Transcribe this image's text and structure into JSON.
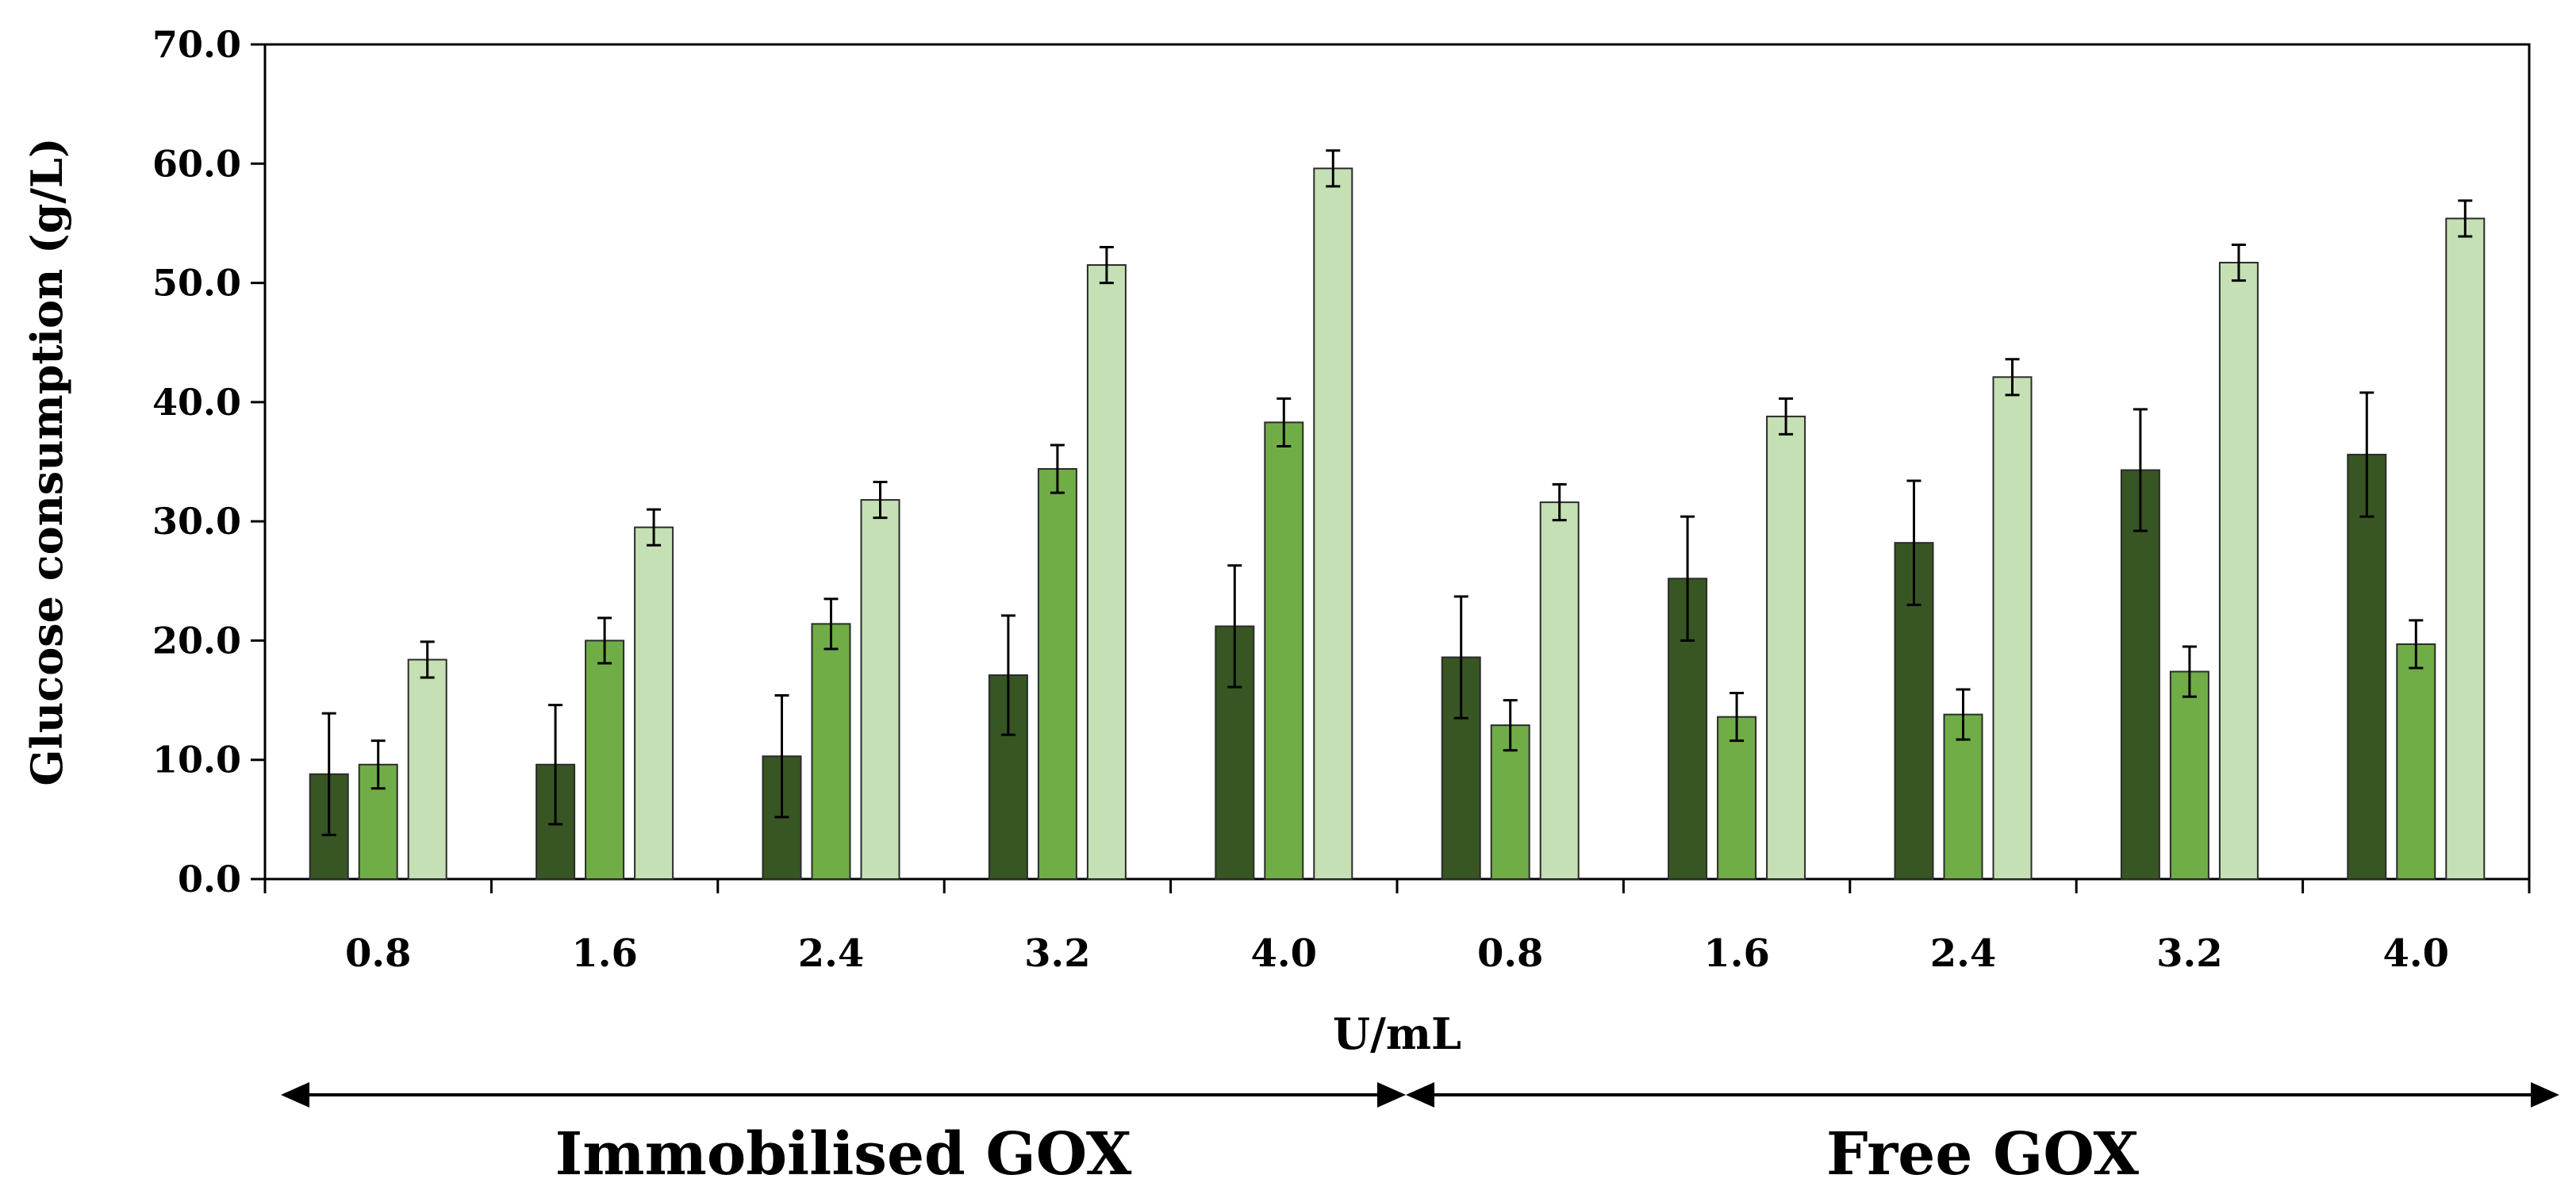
{
  "chart_data": {
    "type": "bar",
    "title": "",
    "xlabel": "U/mL",
    "ylabel": "Glucose consumption (g/L)",
    "ylim": [
      0,
      70
    ],
    "yticks": [
      0,
      10,
      20,
      30,
      40,
      50,
      60,
      70
    ],
    "ytick_labels": [
      "0.0",
      "10.0",
      "20.0",
      "30.0",
      "40.0",
      "50.0",
      "60.0",
      "70.0"
    ],
    "grid": false,
    "legend": "none",
    "categories": [
      "0.8",
      "1.6",
      "2.4",
      "3.2",
      "4.0",
      "0.8",
      "1.6",
      "2.4",
      "3.2",
      "4.0"
    ],
    "groups": [
      {
        "label": "Immobilised GOX",
        "categories": [
          "0.8",
          "1.6",
          "2.4",
          "3.2",
          "4.0"
        ]
      },
      {
        "label": "Free GOX",
        "categories": [
          "0.8",
          "1.6",
          "2.4",
          "3.2",
          "4.0"
        ]
      }
    ],
    "series": [
      {
        "name": "series-1",
        "color": "#375623",
        "values": [
          8.8,
          9.6,
          10.3,
          17.1,
          21.2,
          18.6,
          25.2,
          28.2,
          34.3,
          35.6
        ],
        "errors": [
          5.1,
          5.0,
          5.1,
          5.0,
          5.1,
          5.1,
          5.2,
          5.2,
          5.1,
          5.2
        ]
      },
      {
        "name": "series-2",
        "color": "#70AD47",
        "values": [
          9.6,
          20.0,
          21.4,
          34.4,
          38.3,
          12.9,
          13.6,
          13.8,
          17.4,
          19.7
        ],
        "errors": [
          2.0,
          1.9,
          2.1,
          2.0,
          2.0,
          2.1,
          2.0,
          2.1,
          2.1,
          2.0
        ]
      },
      {
        "name": "series-3",
        "color": "#C5E0B4",
        "values": [
          18.4,
          29.5,
          31.8,
          51.5,
          59.6,
          31.6,
          38.8,
          42.1,
          51.7,
          55.4
        ],
        "errors": [
          1.5,
          1.5,
          1.5,
          1.5,
          1.5,
          1.5,
          1.5,
          1.5,
          1.5,
          1.5
        ]
      }
    ]
  }
}
